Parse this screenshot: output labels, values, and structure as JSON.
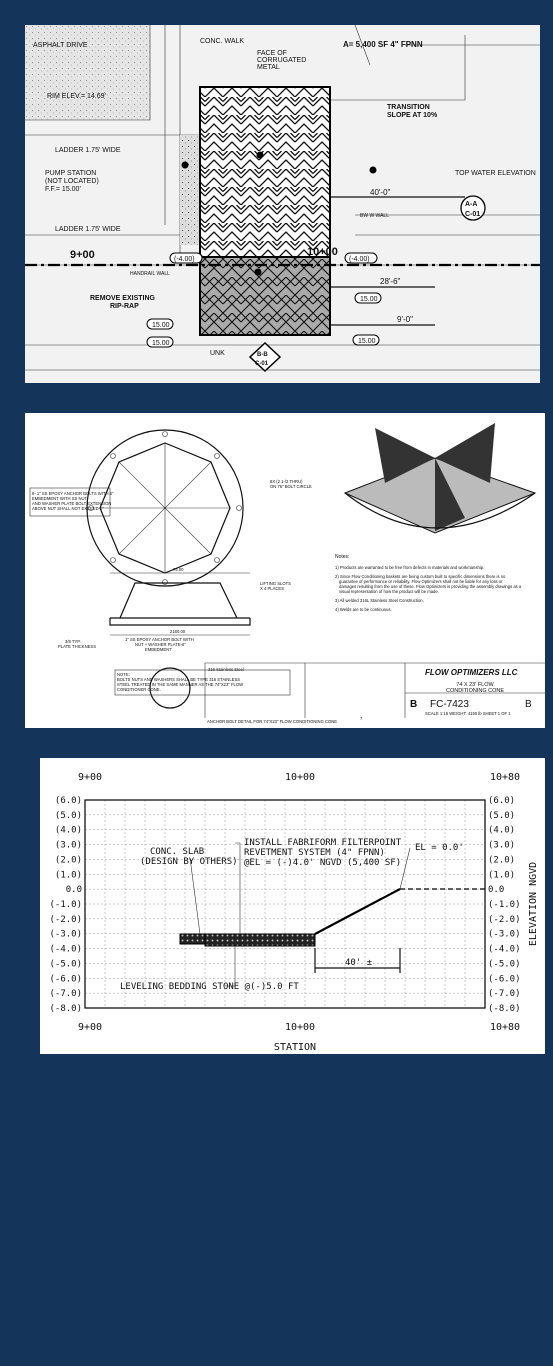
{
  "site_plan": {
    "asphalt_drive": "ASPHALT DRIVE",
    "conc_walk": "CONC. WALK",
    "face_of_metal": [
      "FACE OF",
      "CORRUGATED",
      "METAL"
    ],
    "area_note": "A= 5,400 SF 4\" FPNN",
    "transition": [
      "TRANSITION",
      "SLOPE AT 10%"
    ],
    "rim_elev": "RIM ELEV.= 14.69'",
    "ladder_top": "LADDER 1.75' WIDE",
    "pump_station": [
      "PUMP STATION",
      "(NOT LOCATED)",
      "F.F.= 15.00'"
    ],
    "ladder_bottom": "LADDER 1.75' WIDE",
    "top_water": "TOP WATER ELEVATION",
    "dim_40": "40'-0\"",
    "section_a": "A-A",
    "sheet_a": "C-01",
    "station_900": "9+00",
    "station_1000": "10+00",
    "elev_left": "(-4.00)",
    "elev_right": "(-4.00)",
    "remove_riprap": [
      "REMOVE EXISTING",
      "RIP-RAP"
    ],
    "dim_28": "28'-6\"",
    "dim_9": "9'-0\"",
    "elev_15_a": "15.00",
    "elev_15_b": "15.00",
    "elev_15_c": "15.00",
    "elev_15_d": "15.00",
    "unk": "UNK",
    "section_b": "B-B",
    "sheet_b": "C-01",
    "handrail": "HANDRAIL WALL",
    "bw_wall": "BW W WALL"
  },
  "cone_detail": {
    "bolt_circle": [
      "8X (2 1-/2 THRU)",
      "ON 76\" BOLT CIRCLE"
    ],
    "anchor_note": [
      "8- 1\" SS EPOXY ANCHOR BOLTS WITH 6\"",
      "EMBEDMENT WITH SS NUT",
      "AND WASHER PLATE BOLT EXTENSION",
      "ABOVE NUT SHALL NOT EXCEED 1\""
    ],
    "width": "74.00",
    "lifting_slots": [
      "LIFTING SLOTS",
      "X 4 PLACES"
    ],
    "base_width": "2160.00",
    "anchor_note2": [
      "1\" SS EPOXY ANCHOR BOLT WITH",
      "NUT + WASHER PLATE-6\"",
      "EMBEDMENT"
    ],
    "plate": [
      "3/8 TYP.",
      "PLATE THICKNESS"
    ],
    "notes_title": "Notes:",
    "notes": [
      "1) Products are warranted to be free from defects in materials and workmanship.",
      "2) Since Flow Conditioning baskets are being custom built to specific dimensions there is no",
      "guarantee of performance or reliability. Flow Optimizers shall not be liable for any loss or",
      "damages resulting from the use of these. Flow Optimizers is providing the assembly drawings as a",
      "visual representation of how the product will be made.",
      "3) All welded 316L Stainless Steel Construction.",
      "4) Welds are to be continuous."
    ],
    "material": "316 Stainless Steel",
    "company": "FLOW OPTIMIZERS LLC",
    "product": [
      "74 X 23' FLOW",
      "CONDITIONING CONE"
    ],
    "size": "B",
    "drawing_no": "FC-7423",
    "rev": "B",
    "scale": "SCALE 1:16  WEIGHT: 4150 lb  SHEET 1 OF 1",
    "bolt_note": [
      "NOTE:",
      "BOLTS NUTS AND WASHERS SHALL BE TYPE 316 STAINLESS",
      "STEEL TREATED IN THE SAME MANNER AS THE 74\"X23\" FLOW",
      "CONDITIONER CONE."
    ],
    "caption": "ANCHOR BOLT DETAIL FOR 74\"X23\" FLOW CONDITIONING CONE",
    "detail_no": "7"
  },
  "section": {
    "stations": [
      "9+00",
      "10+00",
      "10+80"
    ],
    "elevations": [
      "(6.0)",
      "(5.0)",
      "(4.0)",
      "(3.0)",
      "(2.0)",
      "(1.0)",
      "0.0",
      "(-1.0)",
      "(-2.0)",
      "(-3.0)",
      "(-4.0)",
      "(-5.0)",
      "(-6.0)",
      "(-7.0)",
      "(-8.0)"
    ],
    "install_note": [
      "INSTALL FABRIFORM FILTERPOINT",
      "REVETMENT SYSTEM (4\" FPNN)",
      "@EL = (-)4.0' NGVD (5,400 SF)"
    ],
    "conc_slab": [
      "CONC. SLAB",
      "(DESIGN BY OTHERS)"
    ],
    "el_zero": "EL = 0.0'",
    "dim_40": "40' ±",
    "bedding": "LEVELING BEDDING STONE @(-)5.0 FT",
    "x_label": "STATION",
    "y_label": "ELEVATION NGVD"
  }
}
